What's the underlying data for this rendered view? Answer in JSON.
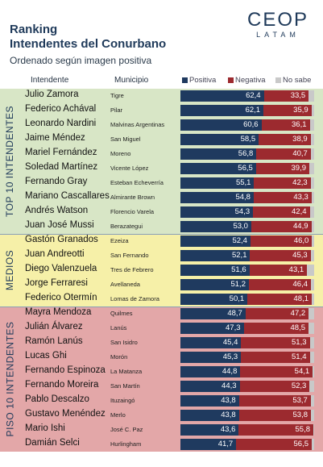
{
  "header": {
    "title_line1": "Ranking",
    "title_line2": "Intendentes del Conurbano",
    "subtitle": "Ordenado según imagen positiva",
    "logo_main": "CEOP",
    "logo_sub": "LATAM",
    "col_intendente": "Intendente",
    "col_municipio": "Municipio"
  },
  "colors": {
    "positiva": "#1f3a5f",
    "negativa": "#9c2a2f",
    "nosabe": "#c9c9c9",
    "group_top": "#d8e6c6",
    "group_medios": "#f6f0a8",
    "group_piso": "#e3a7a8"
  },
  "groups": [
    {
      "label": "TOP 10 INTENDENTES",
      "color_key": "group_top"
    },
    {
      "label": "MEDIOS",
      "color_key": "group_medios"
    },
    {
      "label": "PISO 10 INTENDENTES",
      "color_key": "group_piso"
    }
  ],
  "chart_data": {
    "type": "bar",
    "stacked": true,
    "orientation": "horizontal",
    "legend": [
      "Positiva",
      "Negativa",
      "No sabe"
    ],
    "legend_position": "top",
    "xlim": [
      0,
      100
    ],
    "rows": [
      {
        "name": "Julio Zamora",
        "municipio": "Tigre",
        "positiva": 62.4,
        "negativa": 33.5,
        "group": 0
      },
      {
        "name": "Federico Achával",
        "municipio": "Pilar",
        "positiva": 62.1,
        "negativa": 35.9,
        "group": 0
      },
      {
        "name": "Leonardo Nardini",
        "municipio": "Malvinas Argentinas",
        "positiva": 60.6,
        "negativa": 36.1,
        "group": 0
      },
      {
        "name": "Jaime Méndez",
        "municipio": "San Miguel",
        "positiva": 58.5,
        "negativa": 38.9,
        "group": 0
      },
      {
        "name": "Mariel Fernández",
        "municipio": "Moreno",
        "positiva": 56.8,
        "negativa": 40.7,
        "group": 0
      },
      {
        "name": "Soledad Martínez",
        "municipio": "Vicente López",
        "positiva": 56.5,
        "negativa": 39.9,
        "group": 0
      },
      {
        "name": "Fernando Gray",
        "municipio": "Esteban Echeverría",
        "positiva": 55.1,
        "negativa": 42.3,
        "group": 0
      },
      {
        "name": "Mariano Cascallares",
        "municipio": "Almirante Brown",
        "positiva": 54.8,
        "negativa": 43.3,
        "group": 0
      },
      {
        "name": "Andrés Watson",
        "municipio": "Florencio Varela",
        "positiva": 54.3,
        "negativa": 42.4,
        "group": 0
      },
      {
        "name": "Juan José Mussi",
        "municipio": "Berazategui",
        "positiva": 53.0,
        "negativa": 44.9,
        "group": 0
      },
      {
        "name": "Gastón Granados",
        "municipio": "Ezeiza",
        "positiva": 52.4,
        "negativa": 46.0,
        "group": 1
      },
      {
        "name": "Juan Andreotti",
        "municipio": "San Fernando",
        "positiva": 52.1,
        "negativa": 45.3,
        "group": 1
      },
      {
        "name": "Diego Valenzuela",
        "municipio": "Tres de Febrero",
        "positiva": 51.6,
        "negativa": 43.1,
        "group": 1
      },
      {
        "name": "Jorge Ferraresi",
        "municipio": "Avellaneda",
        "positiva": 51.2,
        "negativa": 46.4,
        "group": 1
      },
      {
        "name": "Federico Otermín",
        "municipio": "Lomas de Zamora",
        "positiva": 50.1,
        "negativa": 48.1,
        "group": 1
      },
      {
        "name": "Mayra Mendoza",
        "municipio": "Quilmes",
        "positiva": 48.7,
        "negativa": 47.2,
        "group": 2
      },
      {
        "name": "Julián Álvarez",
        "municipio": "Lanús",
        "positiva": 47.3,
        "negativa": 48.5,
        "group": 2
      },
      {
        "name": "Ramón Lanús",
        "municipio": "San Isidro",
        "positiva": 45.4,
        "negativa": 51.3,
        "group": 2
      },
      {
        "name": "Lucas Ghi",
        "municipio": "Morón",
        "positiva": 45.3,
        "negativa": 51.4,
        "group": 2
      },
      {
        "name": "Fernando Espinoza",
        "municipio": "La Matanza",
        "positiva": 44.8,
        "negativa": 54.1,
        "group": 2
      },
      {
        "name": "Fernando Moreira",
        "municipio": "San Martín",
        "positiva": 44.3,
        "negativa": 52.3,
        "group": 2
      },
      {
        "name": "Pablo Descalzo",
        "municipio": "Ituzaingó",
        "positiva": 43.8,
        "negativa": 53.7,
        "group": 2
      },
      {
        "name": "Gustavo Menéndez",
        "municipio": "Merlo",
        "positiva": 43.8,
        "negativa": 53.8,
        "group": 2
      },
      {
        "name": "Mario Ishi",
        "municipio": "José C. Paz",
        "positiva": 43.6,
        "negativa": 55.8,
        "group": 2
      },
      {
        "name": "Damián Selci",
        "municipio": "Hurlingham",
        "positiva": 41.7,
        "negativa": 56.5,
        "group": 2
      }
    ]
  }
}
